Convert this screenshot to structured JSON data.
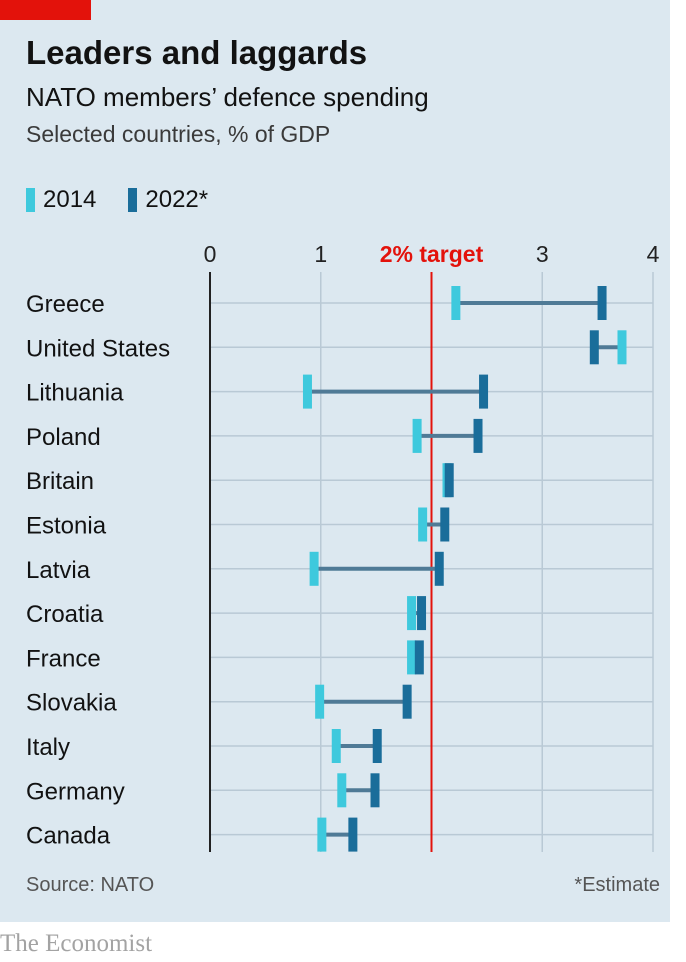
{
  "header": {
    "title": "Leaders and laggards",
    "subtitle": "NATO members’ defence spending",
    "subsubtitle": "Selected countries, % of GDP"
  },
  "legend": {
    "items": [
      {
        "label": "2014",
        "color": "#3ec9dd"
      },
      {
        "label": "2022*",
        "color": "#1a6d9a"
      }
    ]
  },
  "footer": {
    "source": "Source: NATO",
    "note": "*Estimate",
    "brand": "The Economist"
  },
  "colors": {
    "background": "#dce8f0",
    "accent_red": "#e3120b",
    "connector": "#4f7a96",
    "gridline": "#b9c9d5",
    "axis": "#222222"
  },
  "chart_data": {
    "type": "dumbbell",
    "title": "Leaders and laggards",
    "subtitle": "NATO members’ defence spending",
    "ylabel": "Selected countries, % of GDP",
    "xlim": [
      0,
      4
    ],
    "x_ticks": [
      {
        "value": 0,
        "label": "0"
      },
      {
        "value": 1,
        "label": "1"
      },
      {
        "value": 3,
        "label": "3"
      },
      {
        "value": 4,
        "label": "4"
      }
    ],
    "reference_line": {
      "value": 2,
      "label": "2% target",
      "color": "#e3120b"
    },
    "grid": true,
    "legend_position": "top-left",
    "categories": [
      "Greece",
      "United States",
      "Lithuania",
      "Poland",
      "Britain",
      "Estonia",
      "Latvia",
      "Croatia",
      "France",
      "Slovakia",
      "Italy",
      "Germany",
      "Canada"
    ],
    "series": [
      {
        "name": "2014",
        "color": "#3ec9dd",
        "values": [
          2.22,
          3.72,
          0.88,
          1.87,
          2.14,
          1.92,
          0.94,
          1.82,
          1.82,
          0.99,
          1.14,
          1.19,
          1.01
        ]
      },
      {
        "name": "2022*",
        "color": "#1a6d9a",
        "values": [
          3.54,
          3.47,
          2.47,
          2.42,
          2.16,
          2.12,
          2.07,
          1.91,
          1.89,
          1.78,
          1.51,
          1.49,
          1.29
        ]
      }
    ]
  }
}
